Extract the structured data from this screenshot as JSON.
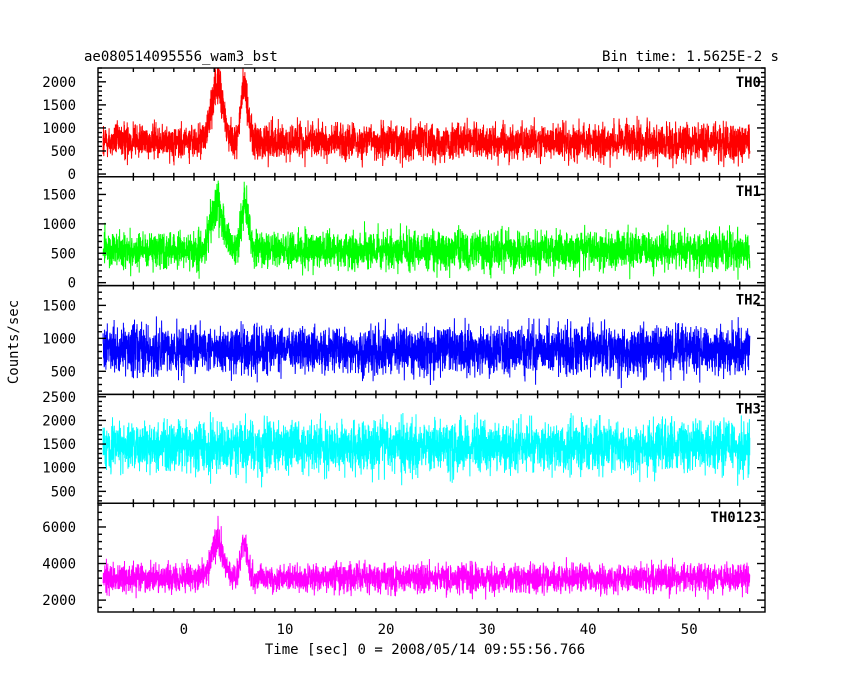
{
  "chart_data": {
    "type": "line",
    "title": "ae080514095556_wam3_bst",
    "subtitle": "Bin time: 1.5625E-2 s",
    "xlabel": "Time [sec] 0 = 2008/05/14 09:55:56.766",
    "ylabel": "Counts/sec",
    "xlim": [
      -8.5,
      57.5
    ],
    "xticks": [
      0,
      10,
      20,
      30,
      40,
      50
    ],
    "x_start": -8,
    "x_end": 56,
    "bin_time": 0.015625,
    "series": [
      {
        "name": "TH0",
        "color": "#ff0000",
        "ylim": [
          -60,
          2300
        ],
        "yticks": [
          0,
          500,
          1000,
          1500,
          2000
        ],
        "baseline": 700,
        "spread": 330,
        "floor": 0,
        "bursts": [
          {
            "t": 3.3,
            "width": 0.8,
            "amp": 1500
          },
          {
            "t": 6.0,
            "width": 0.5,
            "amp": 1400
          }
        ]
      },
      {
        "name": "TH1",
        "color": "#00ff00",
        "ylim": [
          -50,
          1800
        ],
        "yticks": [
          0,
          500,
          1000,
          1500
        ],
        "baseline": 550,
        "spread": 270,
        "floor": 0,
        "bursts": [
          {
            "t": 3.3,
            "width": 0.8,
            "amp": 1000
          },
          {
            "t": 6.0,
            "width": 0.5,
            "amp": 900
          }
        ]
      },
      {
        "name": "TH2",
        "color": "#0000ff",
        "ylim": [
          150,
          1800
        ],
        "yticks": [
          500,
          1000,
          1500
        ],
        "baseline": 820,
        "spread": 300,
        "floor": 170,
        "bursts": []
      },
      {
        "name": "TH3",
        "color": "#00ffff",
        "ylim": [
          250,
          2550
        ],
        "yticks": [
          500,
          1000,
          1500,
          2000,
          2500
        ],
        "baseline": 1450,
        "spread": 450,
        "floor": 300,
        "bursts": []
      },
      {
        "name": "TH0123",
        "color": "#ff00ff",
        "ylim": [
          1350,
          7300
        ],
        "yticks": [
          2000,
          4000,
          6000
        ],
        "baseline": 3200,
        "spread": 650,
        "floor": 1500,
        "bursts": [
          {
            "t": 3.3,
            "width": 0.8,
            "amp": 2500
          },
          {
            "t": 6.0,
            "width": 0.5,
            "amp": 2300
          }
        ]
      }
    ]
  }
}
